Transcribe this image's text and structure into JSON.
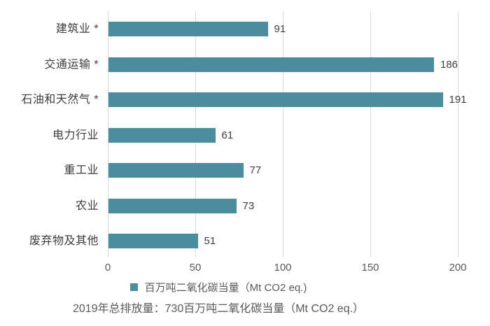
{
  "colors": {
    "bar": "#4b8d9e",
    "grid": "#d9d9d9",
    "category_label": "#3d3d3d",
    "value_label": "#404040",
    "tick_label": "#595959",
    "footer_text": "#595959"
  },
  "chart_data": {
    "type": "bar",
    "orientation": "horizontal",
    "categories": [
      "建筑业 *",
      "交通运输 *",
      "石油和天然气 *",
      "电力行业",
      "重工业",
      "农业",
      "废弃物及其他"
    ],
    "values": [
      91,
      186,
      191,
      61,
      77,
      73,
      51
    ],
    "xlim": [
      0,
      200
    ],
    "xticks": [
      0,
      50,
      100,
      150,
      200
    ],
    "grid": true,
    "legend_position": "bottom",
    "legend": "百万吨二氧化碳当量（Mt CO2 eq.)",
    "caption": "2019年总排放量：730百万吨二氧化碳当量（Mt CO2 eq.）"
  }
}
